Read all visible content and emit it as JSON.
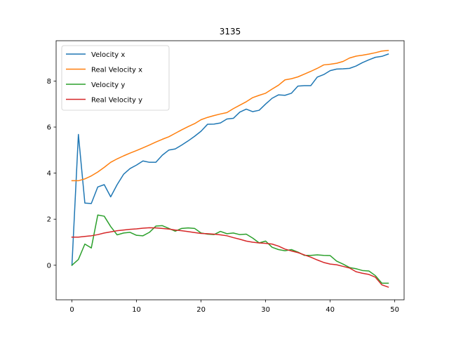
{
  "chart_data": {
    "type": "line",
    "title": "3135",
    "xlabel": "",
    "ylabel": "",
    "xlim": [
      -2.45,
      51.45
    ],
    "ylim": [
      -1.5,
      9.75
    ],
    "xticks": [
      0,
      10,
      20,
      30,
      40,
      50
    ],
    "yticks": [
      0,
      2,
      4,
      6,
      8
    ],
    "grid": false,
    "legend_position": "top-left",
    "x": [
      0,
      1,
      2,
      3,
      4,
      5,
      6,
      7,
      8,
      9,
      10,
      11,
      12,
      13,
      14,
      15,
      16,
      17,
      18,
      19,
      20,
      21,
      22,
      23,
      24,
      25,
      26,
      27,
      28,
      29,
      30,
      31,
      32,
      33,
      34,
      35,
      36,
      37,
      38,
      39,
      40,
      41,
      42,
      43,
      44,
      45,
      46,
      47,
      48,
      49
    ],
    "series": [
      {
        "name": "Velocity x",
        "color": "#1f77b4",
        "values": [
          0.0,
          5.68,
          2.7,
          2.68,
          3.4,
          3.5,
          2.97,
          3.5,
          3.95,
          4.2,
          4.35,
          4.53,
          4.47,
          4.47,
          4.78,
          5.0,
          5.05,
          5.22,
          5.4,
          5.6,
          5.82,
          6.12,
          6.13,
          6.18,
          6.35,
          6.38,
          6.65,
          6.78,
          6.67,
          6.73,
          7.0,
          7.25,
          7.4,
          7.38,
          7.47,
          7.78,
          7.8,
          7.8,
          8.17,
          8.28,
          8.45,
          8.52,
          8.53,
          8.55,
          8.65,
          8.8,
          8.92,
          9.03,
          9.07,
          9.17
        ]
      },
      {
        "name": "Real Velocity x",
        "color": "#ff7f0e",
        "values": [
          3.67,
          3.67,
          3.75,
          3.88,
          4.05,
          4.25,
          4.47,
          4.62,
          4.75,
          4.87,
          4.98,
          5.1,
          5.22,
          5.35,
          5.47,
          5.58,
          5.73,
          5.88,
          6.02,
          6.15,
          6.32,
          6.42,
          6.5,
          6.57,
          6.63,
          6.8,
          6.95,
          7.1,
          7.28,
          7.38,
          7.47,
          7.65,
          7.82,
          8.05,
          8.1,
          8.18,
          8.3,
          8.42,
          8.55,
          8.7,
          8.73,
          8.77,
          8.85,
          9.0,
          9.08,
          9.12,
          9.17,
          9.23,
          9.3,
          9.33
        ]
      },
      {
        "name": "Velocity y",
        "color": "#2ca02c",
        "values": [
          0.0,
          0.25,
          0.92,
          0.75,
          2.18,
          2.13,
          1.68,
          1.32,
          1.4,
          1.43,
          1.3,
          1.28,
          1.43,
          1.7,
          1.72,
          1.6,
          1.48,
          1.6,
          1.62,
          1.6,
          1.4,
          1.35,
          1.33,
          1.47,
          1.37,
          1.4,
          1.33,
          1.35,
          1.18,
          0.97,
          1.05,
          0.78,
          0.68,
          0.63,
          0.68,
          0.57,
          0.43,
          0.43,
          0.45,
          0.43,
          0.42,
          0.18,
          0.05,
          -0.1,
          -0.15,
          -0.23,
          -0.25,
          -0.45,
          -0.78,
          -0.78
        ]
      },
      {
        "name": "Real Velocity y",
        "color": "#d62728",
        "values": [
          1.22,
          1.22,
          1.25,
          1.28,
          1.33,
          1.4,
          1.45,
          1.5,
          1.53,
          1.56,
          1.58,
          1.61,
          1.63,
          1.62,
          1.6,
          1.57,
          1.53,
          1.5,
          1.46,
          1.42,
          1.38,
          1.37,
          1.35,
          1.32,
          1.28,
          1.2,
          1.13,
          1.05,
          1.0,
          0.97,
          0.95,
          0.92,
          0.83,
          0.7,
          0.62,
          0.55,
          0.45,
          0.35,
          0.23,
          0.12,
          0.05,
          0.02,
          -0.05,
          -0.12,
          -0.28,
          -0.35,
          -0.4,
          -0.52,
          -0.85,
          -0.95
        ]
      }
    ]
  }
}
